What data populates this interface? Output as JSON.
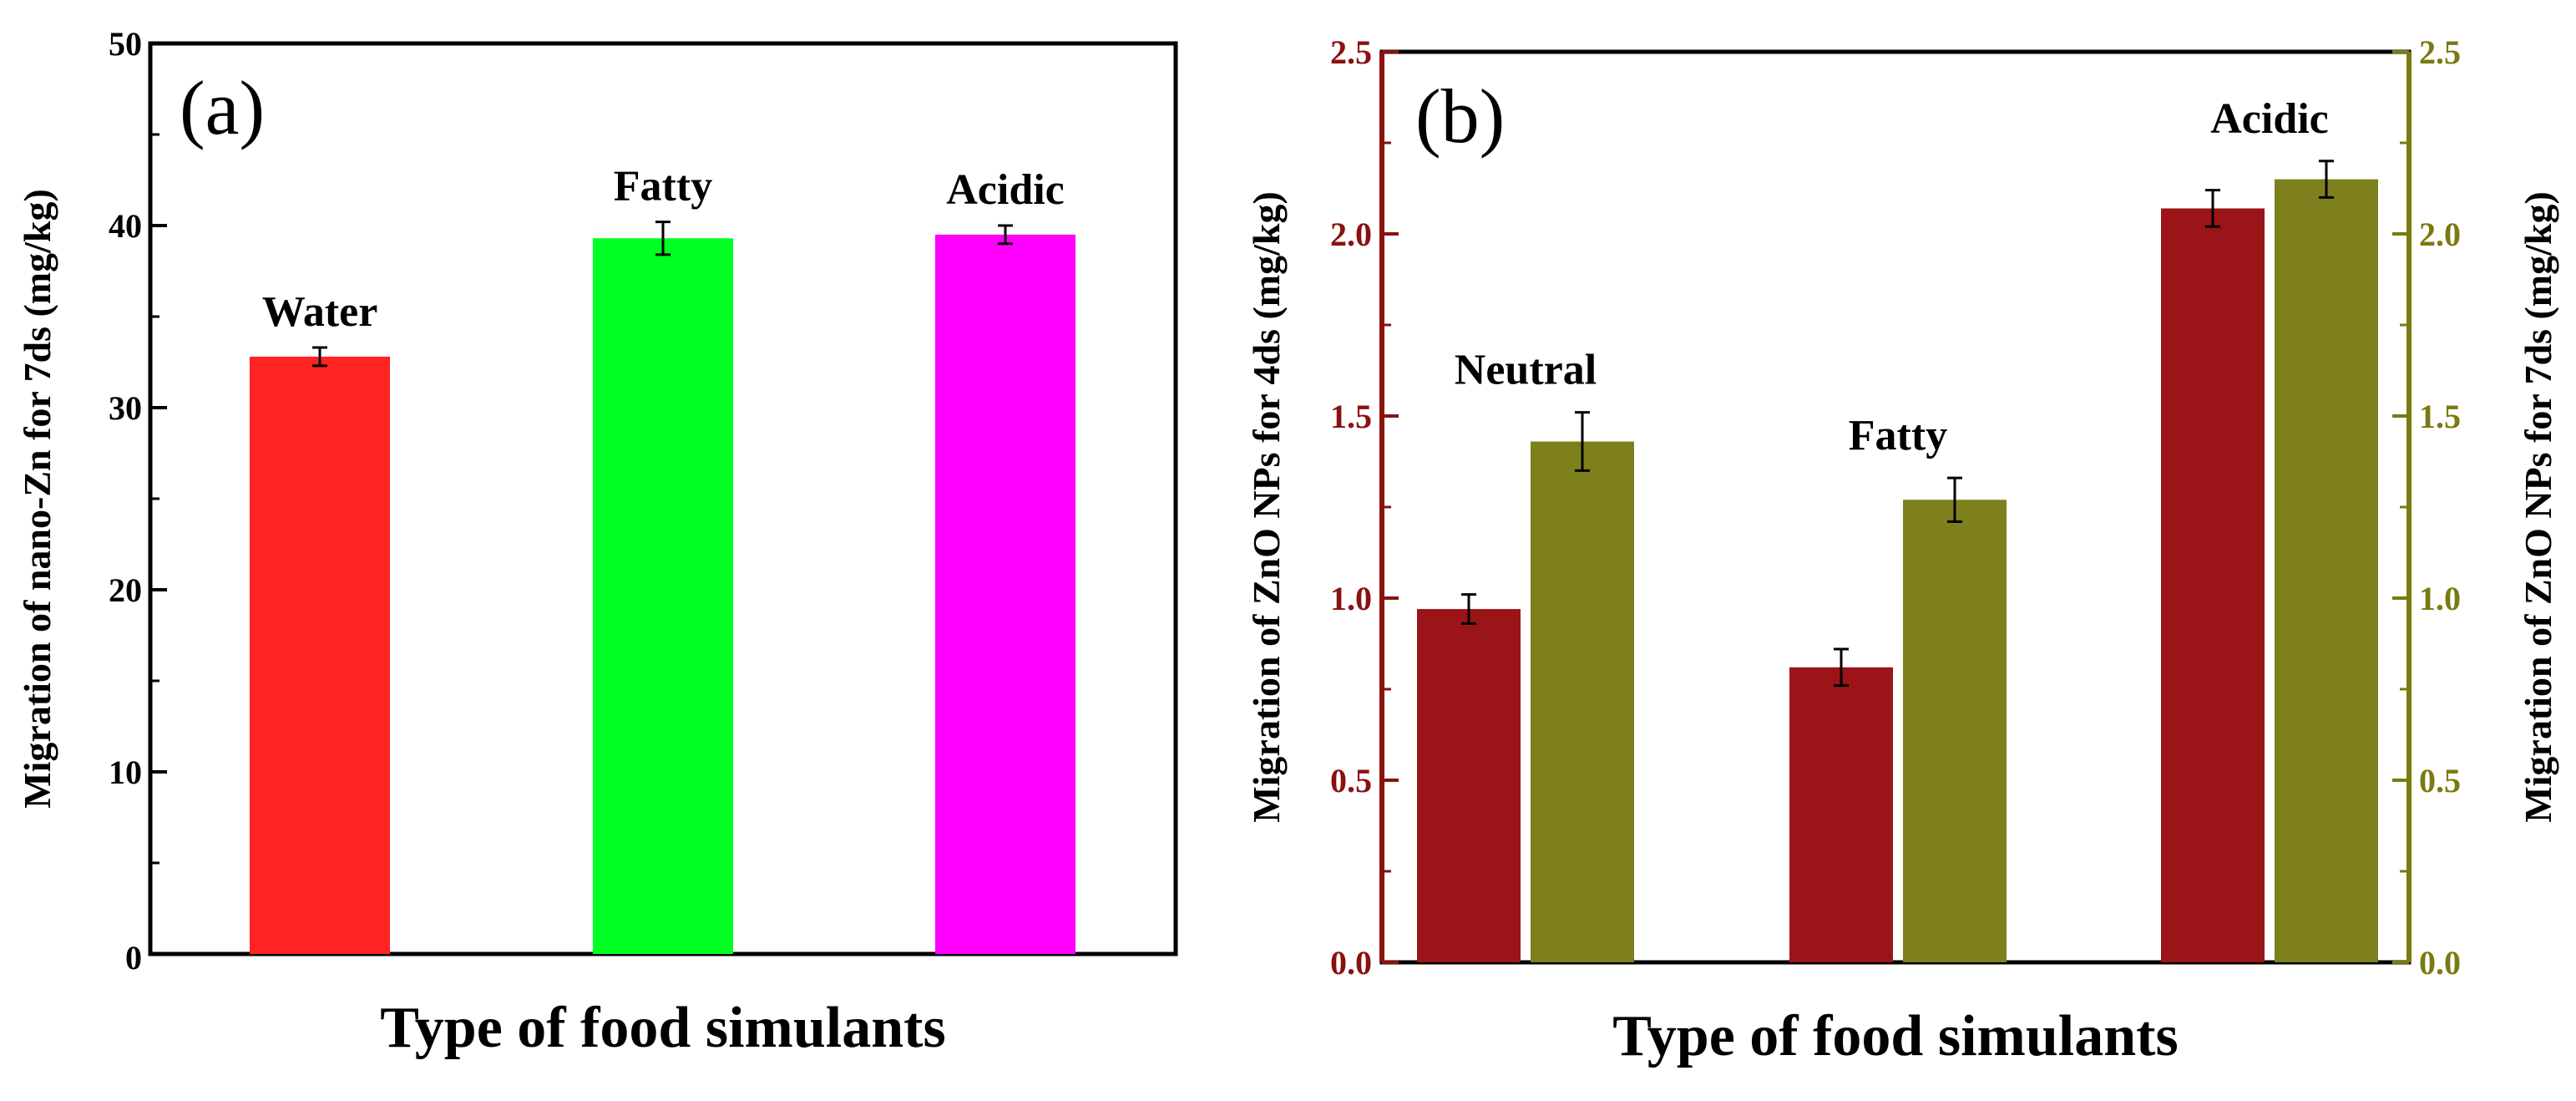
{
  "chart_data": [
    {
      "panel_label": "(a)",
      "type": "bar",
      "xlabel": "Type of food simulants",
      "ylabel": "Migration of nano-Zn for 7ds (mg/kg)",
      "ylim": [
        0,
        50
      ],
      "yticks": [
        "0",
        "10",
        "20",
        "30",
        "40",
        "50"
      ],
      "bars": [
        {
          "label": "Water",
          "value": 32.8,
          "error": 0.5,
          "color": "#ff2323"
        },
        {
          "label": "Fatty",
          "value": 39.3,
          "error": 0.9,
          "color": "#00ff22"
        },
        {
          "label": "Acidic",
          "value": 39.5,
          "error": 0.5,
          "color": "#ff00ff"
        }
      ]
    },
    {
      "panel_label": "(b)",
      "type": "bar",
      "xlabel": "Type of food simulants",
      "ylabel_left": "Migration of ZnO NPs for 4ds (mg/kg)",
      "ylabel_right": "Migration of ZnO NPs for 7ds (mg/kg)",
      "ylim": [
        0,
        2.5
      ],
      "yticks": [
        "0.0",
        "0.5",
        "1.0",
        "1.5",
        "2.0",
        "2.5"
      ],
      "colors": {
        "left_axis": "#8b1010",
        "right_axis": "#7a7a10"
      },
      "categories": [
        "Neutral",
        "Fatty",
        "Acidic"
      ],
      "series": [
        {
          "name": "4ds",
          "axis": "left",
          "color": "#9b1418",
          "values": [
            0.97,
            0.81,
            2.07
          ],
          "errors": [
            0.04,
            0.05,
            0.05
          ]
        },
        {
          "name": "7ds",
          "axis": "right",
          "color": "#7d801c",
          "values": [
            1.43,
            1.27,
            2.15
          ],
          "errors": [
            0.08,
            0.06,
            0.05
          ]
        }
      ]
    }
  ]
}
